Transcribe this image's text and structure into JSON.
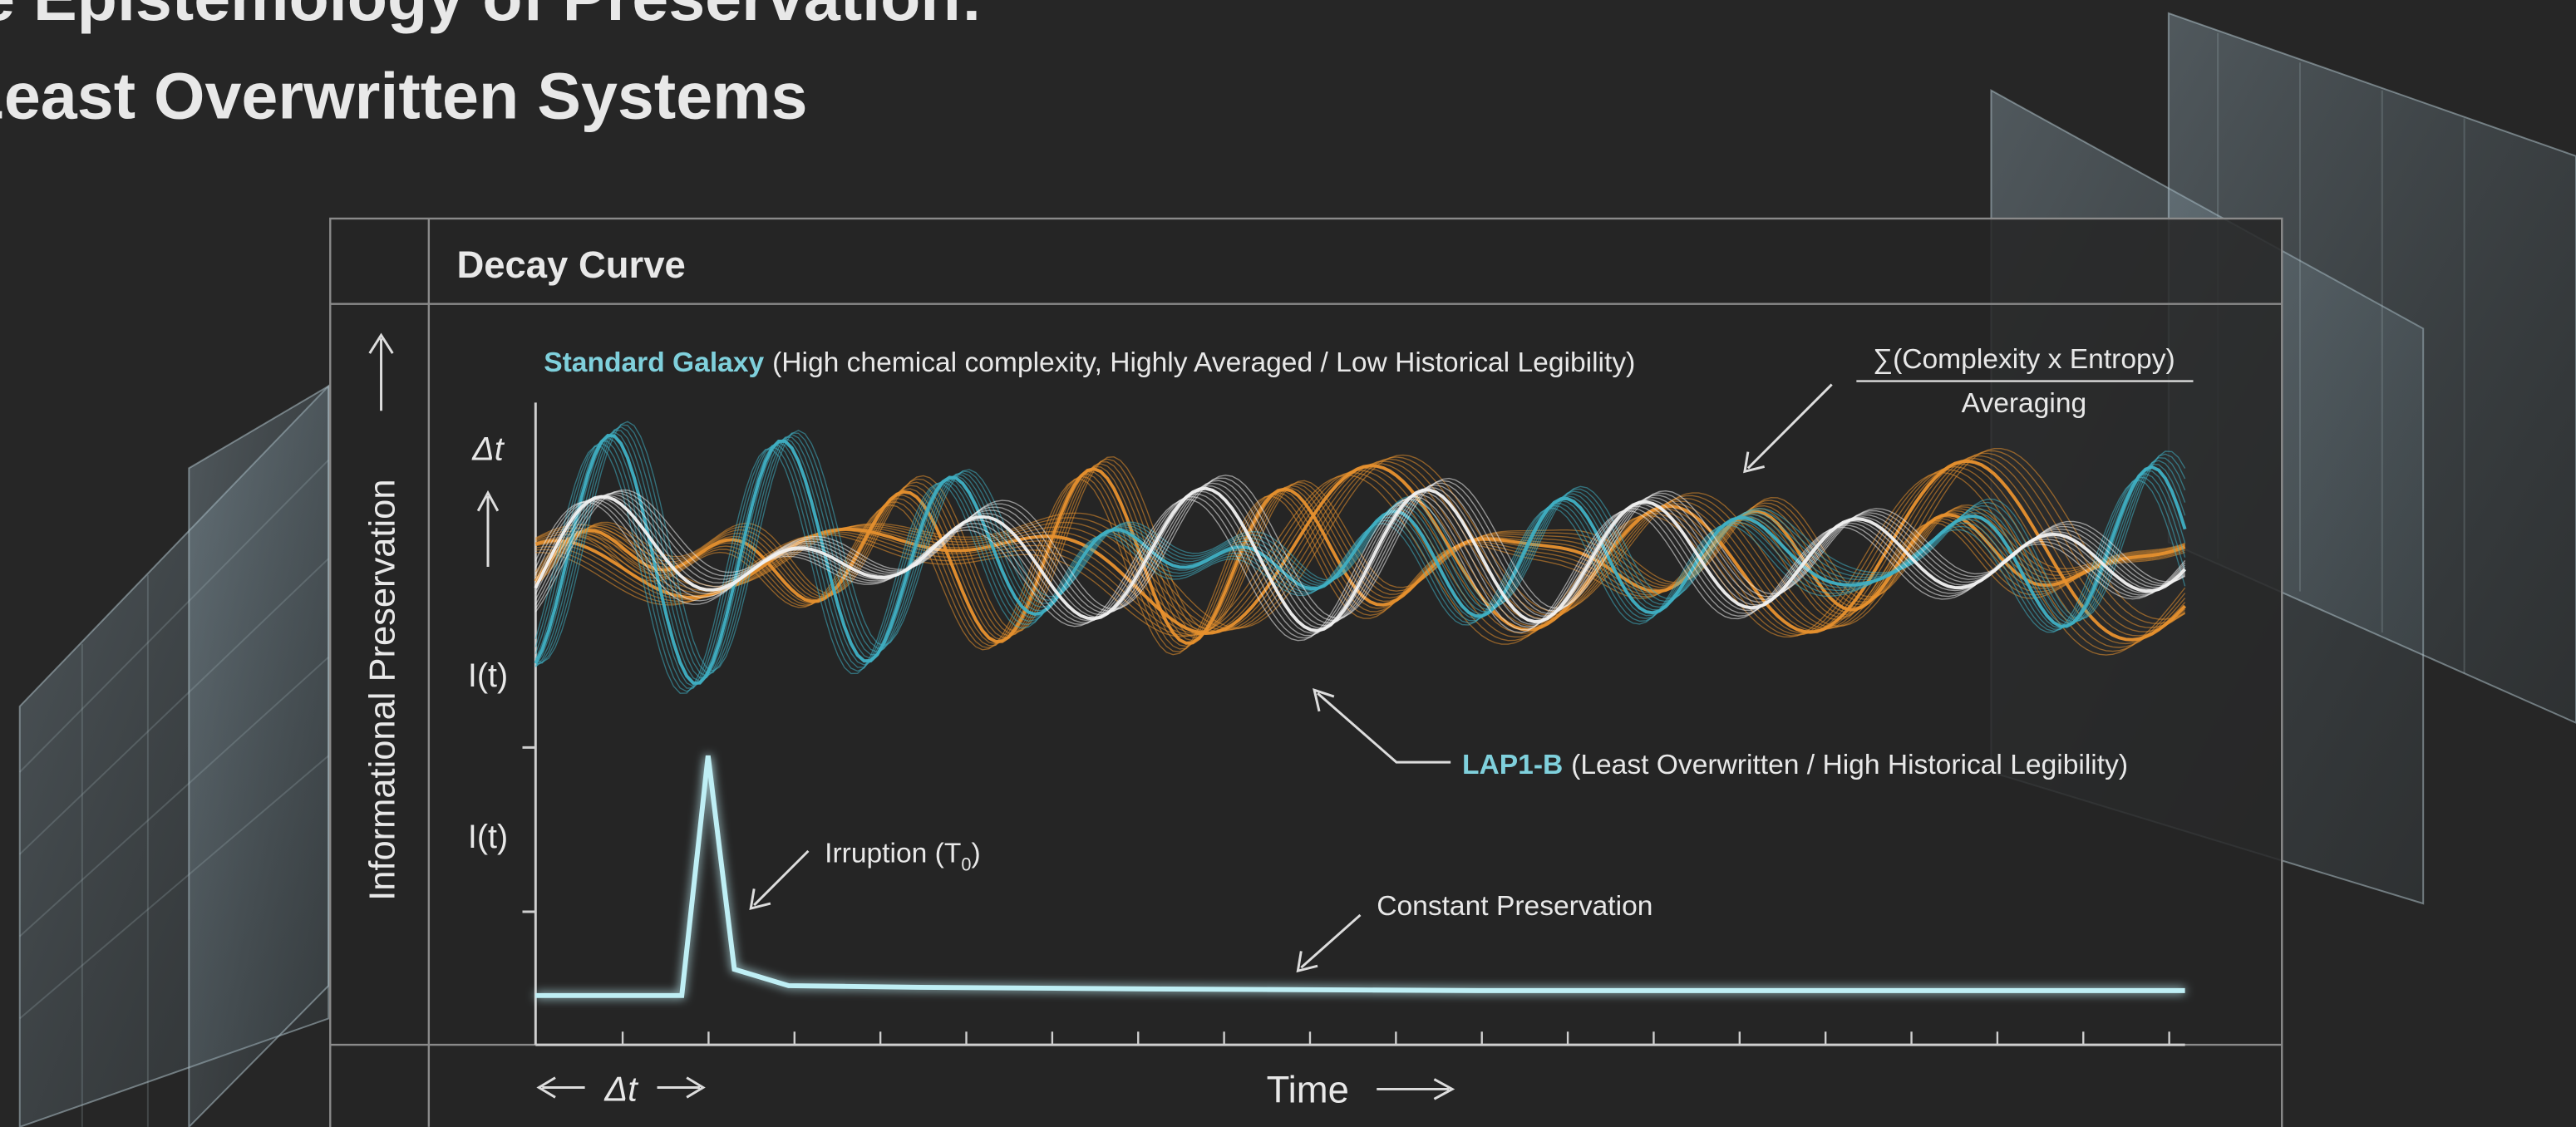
{
  "header": {
    "title_lines": [
      "The Epistemology of Preservation:",
      "Least Overwritten Systems"
    ]
  },
  "panel": {
    "title": "Decay Curve",
    "y_axis_label": "Informational Preservation",
    "standard_galaxy": {
      "name": "Standard Galaxy",
      "description": "(High chemical complexity, Highly Averaged / Low Historical Legibility)"
    },
    "formula": {
      "numerator": "∑(Complexity x Entropy)",
      "denominator": "Averaging"
    },
    "upper_labels": {
      "delta": "Δt",
      "intensity": "I(t)"
    },
    "lap1b": {
      "name": "LAP1-B",
      "description": "(Least Overwritten / High Historical Legibility)"
    },
    "lower_label": "I(t)",
    "irruption": {
      "text": "Irruption (T",
      "subscript": "0",
      "close": ")"
    },
    "constant": "Constant Preservation",
    "x_axis": {
      "delta": "Δt",
      "label": "Time"
    }
  }
}
